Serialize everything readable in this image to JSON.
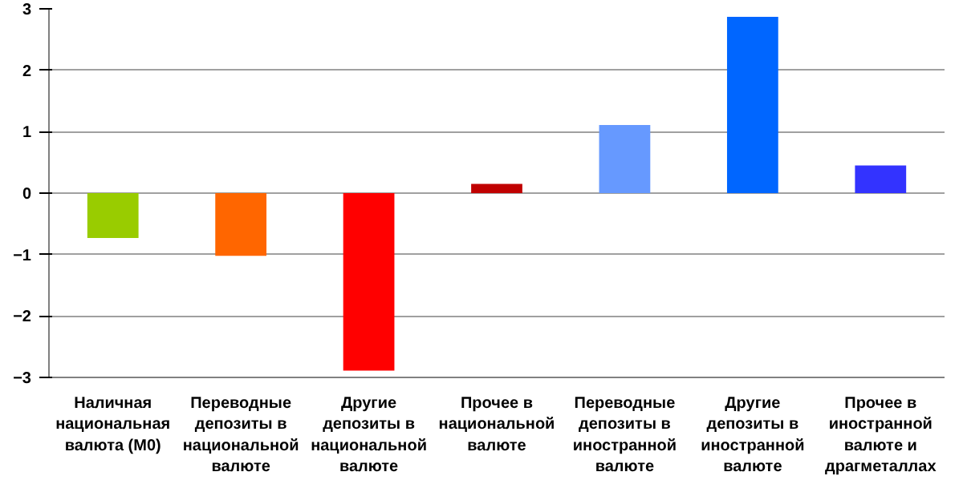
{
  "chart_data": {
    "type": "bar",
    "categories": [
      "Наличная национальная валюта (М0)",
      "Переводные депозиты в национальной валюте",
      "Другие депозиты в национальной валюте",
      "Прочее в национальной валюте",
      "Переводные депозиты в иностранной валюте",
      "Другие депозиты в иностранной валюте",
      "Прочее в иностранной валюте и драгметаллах"
    ],
    "values": [
      -0.73,
      -1.02,
      -2.89,
      0.15,
      1.11,
      2.87,
      0.45
    ],
    "colors": [
      "#99cc00",
      "#ff6600",
      "#ff0000",
      "#c00000",
      "#6699ff",
      "#0066ff",
      "#3333ff"
    ],
    "ylim": [
      -3,
      3
    ],
    "yticks": [
      -3,
      -2,
      -1,
      0,
      1,
      2,
      3
    ],
    "grid": "y"
  }
}
